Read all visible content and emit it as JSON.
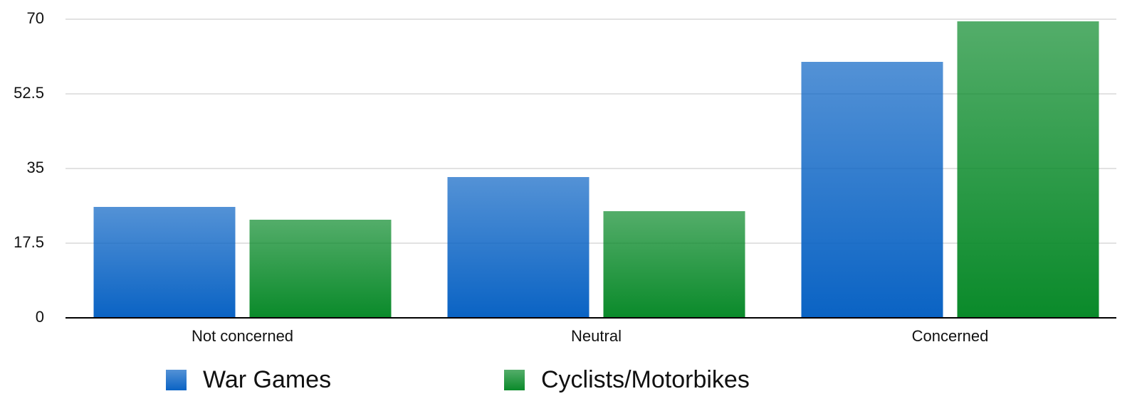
{
  "chart_data": {
    "type": "bar",
    "categories": [
      "Not concerned",
      "Neutral",
      "Concerned"
    ],
    "series": [
      {
        "name": "War Games",
        "color": "#0a63c4",
        "values": [
          26,
          33,
          60
        ]
      },
      {
        "name": "Cyclists/Motorbikes",
        "color": "#0a8a2a",
        "values": [
          23,
          25,
          69.5
        ]
      }
    ],
    "ylim": [
      0,
      70
    ],
    "yticks": [
      0,
      17.5,
      35,
      52.5,
      70
    ],
    "grid": true,
    "legend": "bottom"
  }
}
